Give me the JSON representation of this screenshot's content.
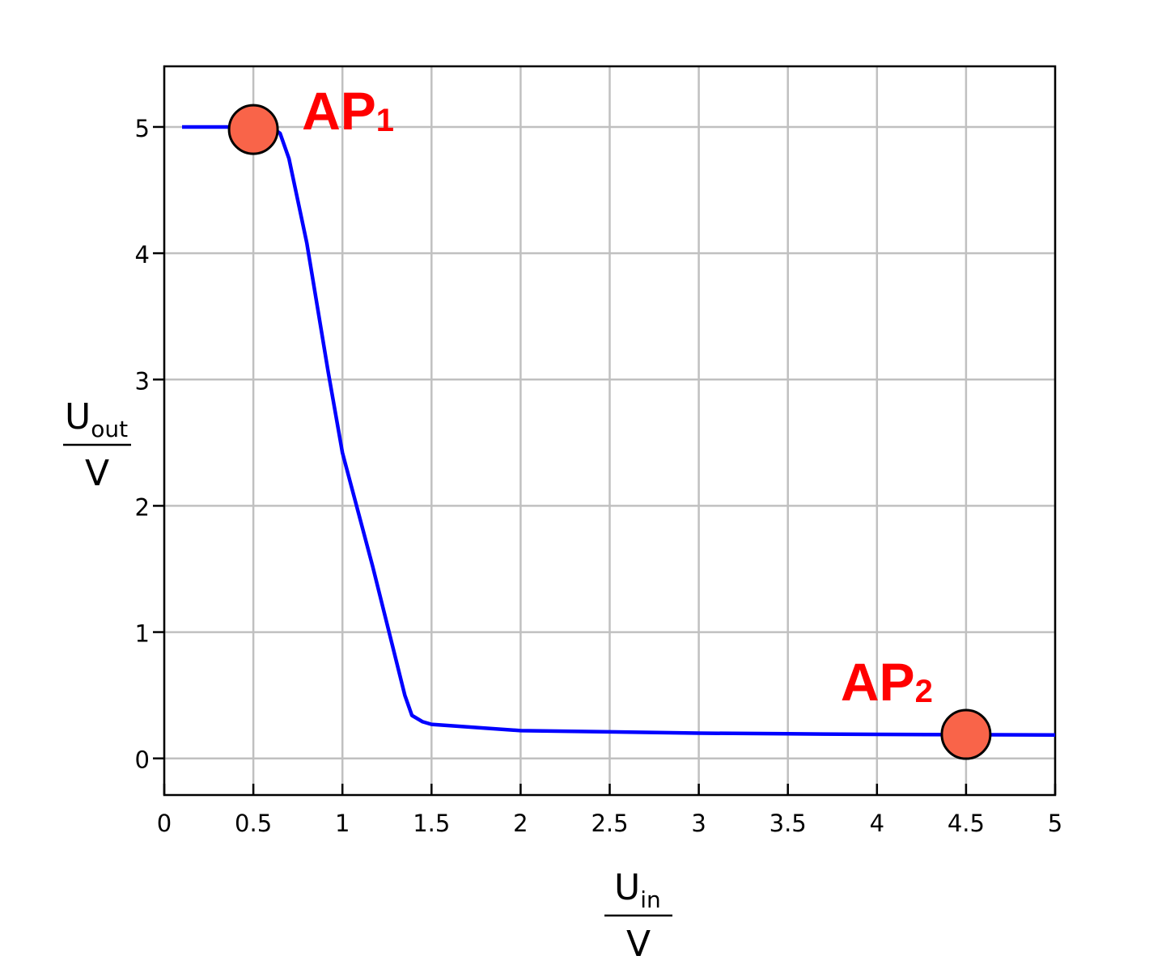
{
  "chart_data": {
    "type": "line",
    "x_label": {
      "symbol": "U",
      "subscript": "in",
      "unit": "V"
    },
    "y_label": {
      "symbol": "U",
      "subscript": "out",
      "unit": "V"
    },
    "x": [
      0.1,
      0.5,
      0.6,
      0.65,
      0.7,
      0.8,
      0.92,
      1.0,
      1.17,
      1.35,
      1.39,
      1.45,
      1.5,
      2,
      2.5,
      3,
      3.5,
      4,
      4.5,
      5
    ],
    "series": [
      {
        "color": "#0000ff",
        "values": [
          5,
          5,
          5,
          4.95,
          4.75,
          4.08,
          3.06,
          2.42,
          1.52,
          0.5,
          0.34,
          0.29,
          0.27,
          0.22,
          0.21,
          0.2,
          0.195,
          0.19,
          0.188,
          0.185
        ]
      }
    ],
    "points": [
      {
        "label": "AP",
        "subscript": "1",
        "x": 0.5,
        "y": 4.98
      },
      {
        "label": "AP",
        "subscript": "2",
        "x": 4.5,
        "y": 0.19
      }
    ],
    "point_color": "#f96449",
    "label_color": "#ff0000",
    "xlim": [
      0,
      5
    ],
    "ylim": [
      -0.29,
      5.48
    ],
    "xticks": [
      0,
      0.5,
      1,
      1.5,
      2,
      2.5,
      3,
      3.5,
      4,
      4.5,
      5
    ],
    "yticks": [
      0,
      1,
      2,
      3,
      4,
      5
    ],
    "grid": true
  }
}
